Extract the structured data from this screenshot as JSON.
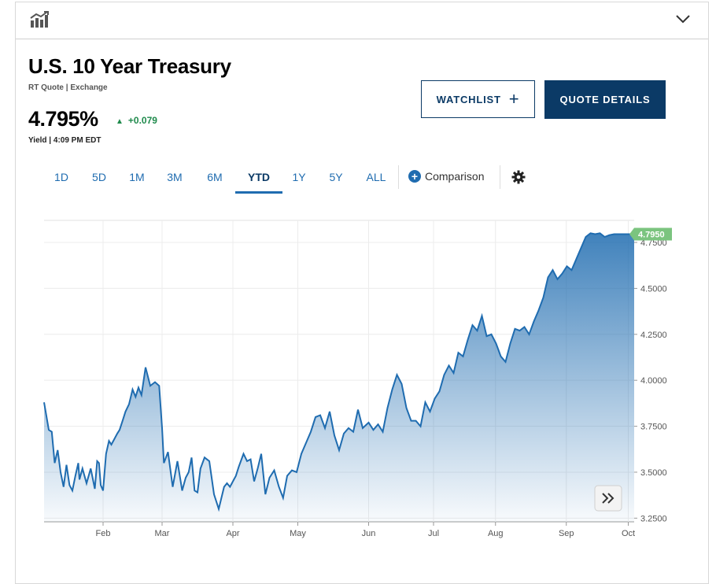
{
  "header": {
    "icon": "chart-icon",
    "expand_icon": "chevron-down-icon"
  },
  "quote": {
    "name": "U.S. 10 Year Treasury",
    "subtitle": "RT Quote | Exchange",
    "price": "4.795%",
    "change": "+0.079",
    "meta": "Yield | 4:09 PM EDT"
  },
  "buttons": {
    "watchlist": "WATCHLIST",
    "quote_details": "QUOTE DETAILS"
  },
  "tabs": [
    {
      "label": "1D"
    },
    {
      "label": "5D"
    },
    {
      "label": "1M"
    },
    {
      "label": "3M"
    },
    {
      "label": "6M"
    },
    {
      "label": "YTD",
      "active": true
    },
    {
      "label": "1Y"
    },
    {
      "label": "5Y"
    },
    {
      "label": "ALL"
    }
  ],
  "comparison_label": "Comparison",
  "colors": {
    "accent": "#1f6cb0",
    "navy": "#0b3a66",
    "up": "#1f8a4c",
    "last_badge": "#7bc47f"
  },
  "chart_data": {
    "type": "area",
    "y_ticks": [
      "3.2500",
      "3.5000",
      "3.7500",
      "4.0000",
      "4.2500",
      "4.5000",
      "4.7500"
    ],
    "ylim": [
      3.23,
      4.87
    ],
    "x_tick_labels": [
      "Feb",
      "Mar",
      "Apr",
      "May",
      "Jun",
      "Jul",
      "Aug",
      "Sep",
      "Oct"
    ],
    "x_tick_positions": [
      1.0,
      2.0,
      3.2,
      4.3,
      5.5,
      6.6,
      7.65,
      8.85,
      9.9
    ],
    "xlim": [
      0.0,
      10.0
    ],
    "last_value_label": "4.7950",
    "grid": true,
    "x": [
      0.0,
      0.08,
      0.13,
      0.18,
      0.23,
      0.28,
      0.33,
      0.38,
      0.43,
      0.48,
      0.53,
      0.58,
      0.6,
      0.65,
      0.72,
      0.79,
      0.86,
      0.9,
      0.93,
      0.96,
      1.0,
      1.05,
      1.1,
      1.14,
      1.19,
      1.24,
      1.28,
      1.33,
      1.38,
      1.44,
      1.5,
      1.55,
      1.6,
      1.65,
      1.72,
      1.8,
      1.88,
      1.95,
      2.0,
      2.03,
      2.1,
      2.18,
      2.26,
      2.34,
      2.4,
      2.45,
      2.5,
      2.55,
      2.6,
      2.65,
      2.72,
      2.8,
      2.88,
      2.96,
      3.05,
      3.1,
      3.15,
      3.2,
      3.25,
      3.3,
      3.38,
      3.44,
      3.5,
      3.56,
      3.62,
      3.68,
      3.75,
      3.82,
      3.9,
      3.98,
      4.05,
      4.12,
      4.2,
      4.28,
      4.36,
      4.44,
      4.52,
      4.6,
      4.68,
      4.76,
      4.84,
      4.92,
      5.0,
      5.08,
      5.16,
      5.24,
      5.32,
      5.4,
      5.5,
      5.58,
      5.66,
      5.74,
      5.82,
      5.9,
      5.98,
      6.06,
      6.14,
      6.22,
      6.3,
      6.38,
      6.46,
      6.54,
      6.62,
      6.7,
      6.78,
      6.86,
      6.94,
      7.02,
      7.1,
      7.18,
      7.26,
      7.34,
      7.42,
      7.5,
      7.58,
      7.66,
      7.74,
      7.82,
      7.9,
      7.98,
      8.06,
      8.14,
      8.22,
      8.3,
      8.38,
      8.46,
      8.54,
      8.62,
      8.7,
      8.78,
      8.86,
      8.94,
      9.02,
      9.1,
      9.18,
      9.26,
      9.34,
      9.42,
      9.5,
      9.58,
      9.66,
      9.74,
      9.82,
      9.9,
      9.96,
      10.0
    ],
    "y": [
      3.88,
      3.73,
      3.72,
      3.55,
      3.62,
      3.5,
      3.42,
      3.54,
      3.43,
      3.4,
      3.48,
      3.55,
      3.46,
      3.52,
      3.44,
      3.52,
      3.41,
      3.56,
      3.55,
      3.43,
      3.4,
      3.6,
      3.67,
      3.65,
      3.68,
      3.71,
      3.73,
      3.78,
      3.83,
      3.87,
      3.95,
      3.91,
      3.96,
      3.92,
      4.07,
      3.97,
      3.99,
      3.97,
      3.74,
      3.55,
      3.61,
      3.42,
      3.56,
      3.4,
      3.47,
      3.5,
      3.58,
      3.4,
      3.39,
      3.52,
      3.58,
      3.56,
      3.38,
      3.3,
      3.42,
      3.44,
      3.42,
      3.45,
      3.48,
      3.53,
      3.6,
      3.56,
      3.57,
      3.45,
      3.52,
      3.6,
      3.38,
      3.47,
      3.51,
      3.42,
      3.36,
      3.48,
      3.51,
      3.5,
      3.6,
      3.66,
      3.72,
      3.8,
      3.81,
      3.74,
      3.83,
      3.7,
      3.62,
      3.71,
      3.74,
      3.72,
      3.84,
      3.74,
      3.77,
      3.73,
      3.76,
      3.72,
      3.85,
      3.95,
      4.03,
      3.98,
      3.85,
      3.78,
      3.78,
      3.75,
      3.88,
      3.83,
      3.9,
      3.94,
      4.03,
      4.08,
      4.04,
      4.15,
      4.13,
      4.22,
      4.3,
      4.27,
      4.35,
      4.24,
      4.25,
      4.2,
      4.13,
      4.1,
      4.2,
      4.28,
      4.27,
      4.29,
      4.25,
      4.32,
      4.38,
      4.45,
      4.56,
      4.6,
      4.55,
      4.58,
      4.62,
      4.6,
      4.66,
      4.72,
      4.78,
      4.8,
      4.795,
      4.8,
      4.78,
      4.79,
      4.795,
      4.795,
      4.795,
      4.795,
      4.795,
      4.795
    ]
  }
}
